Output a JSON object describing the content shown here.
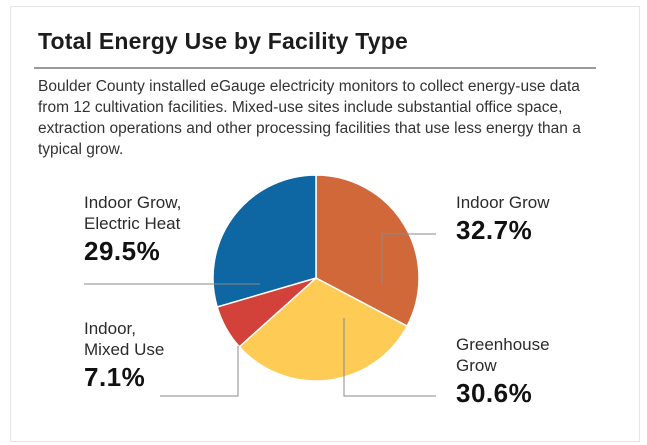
{
  "title": "Total Energy Use by Facility Type",
  "description": "Boulder County installed eGauge electricity monitors to collect energy-use data from 12 cultivation facilities. Mixed-use sites include substantial office space, extraction operations and other processing facilities that use less energy than a typical grow.",
  "chart_data": {
    "type": "pie",
    "title": "Total Energy Use by Facility Type",
    "slices": [
      {
        "name": "Indoor Grow",
        "label_lines": [
          "Indoor Grow"
        ],
        "value": 32.7,
        "pct_label": "32.7%",
        "color": "#d0683a"
      },
      {
        "name": "Greenhouse Grow",
        "label_lines": [
          "Greenhouse",
          "Grow"
        ],
        "value": 30.6,
        "pct_label": "30.6%",
        "color": "#fecb55"
      },
      {
        "name": "Indoor, Mixed Use",
        "label_lines": [
          "Indoor,",
          "Mixed Use"
        ],
        "value": 7.1,
        "pct_label": "7.1%",
        "color": "#d2423a"
      },
      {
        "name": "Indoor Grow, Electric Heat",
        "label_lines": [
          "Indoor Grow,",
          "Electric Heat"
        ],
        "value": 29.5,
        "pct_label": "29.5%",
        "color": "#0e66a3"
      }
    ]
  }
}
